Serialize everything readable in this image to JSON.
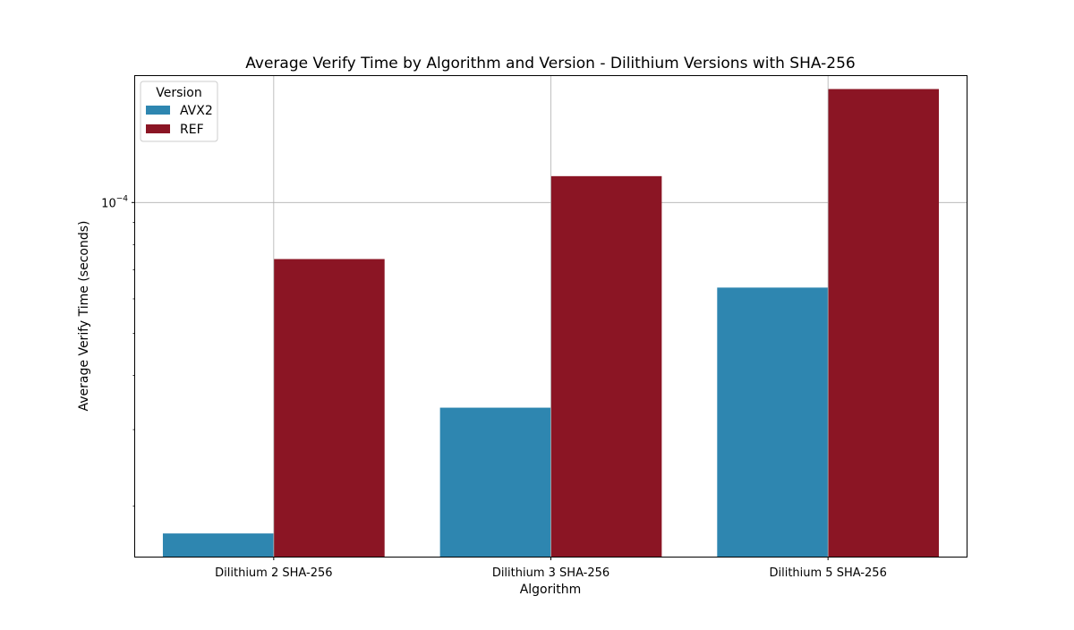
{
  "chart_data": {
    "type": "bar",
    "title": "Average Verify Time by Algorithm and Version - Dilithium Versions with SHA-256",
    "xlabel": "Algorithm",
    "ylabel": "Average Verify Time (seconds)",
    "yscale": "log",
    "ylim": [
      1.53e-05,
      0.0001955
    ],
    "categories": [
      "Dilithium 2 SHA-256",
      "Dilithium 3 SHA-256",
      "Dilithium 5 SHA-256"
    ],
    "series": [
      {
        "name": "AVX2",
        "color": "#2e86b0",
        "values": [
          1.73e-05,
          3.37e-05,
          6.37e-05
        ]
      },
      {
        "name": "REF",
        "color": "#8b1524",
        "values": [
          7.41e-05,
          0.000115,
          0.0001825
        ]
      }
    ],
    "y_major_tick_labels": [
      {
        "value": 0.0001,
        "base": "10",
        "exp": "−4"
      }
    ],
    "y_minor_ticks": [
      2e-05,
      3e-05,
      4e-05,
      5e-05,
      6e-05,
      7e-05,
      8e-05,
      9e-05
    ],
    "grid": true,
    "legend": {
      "title": "Version",
      "placement": "top-left"
    }
  }
}
